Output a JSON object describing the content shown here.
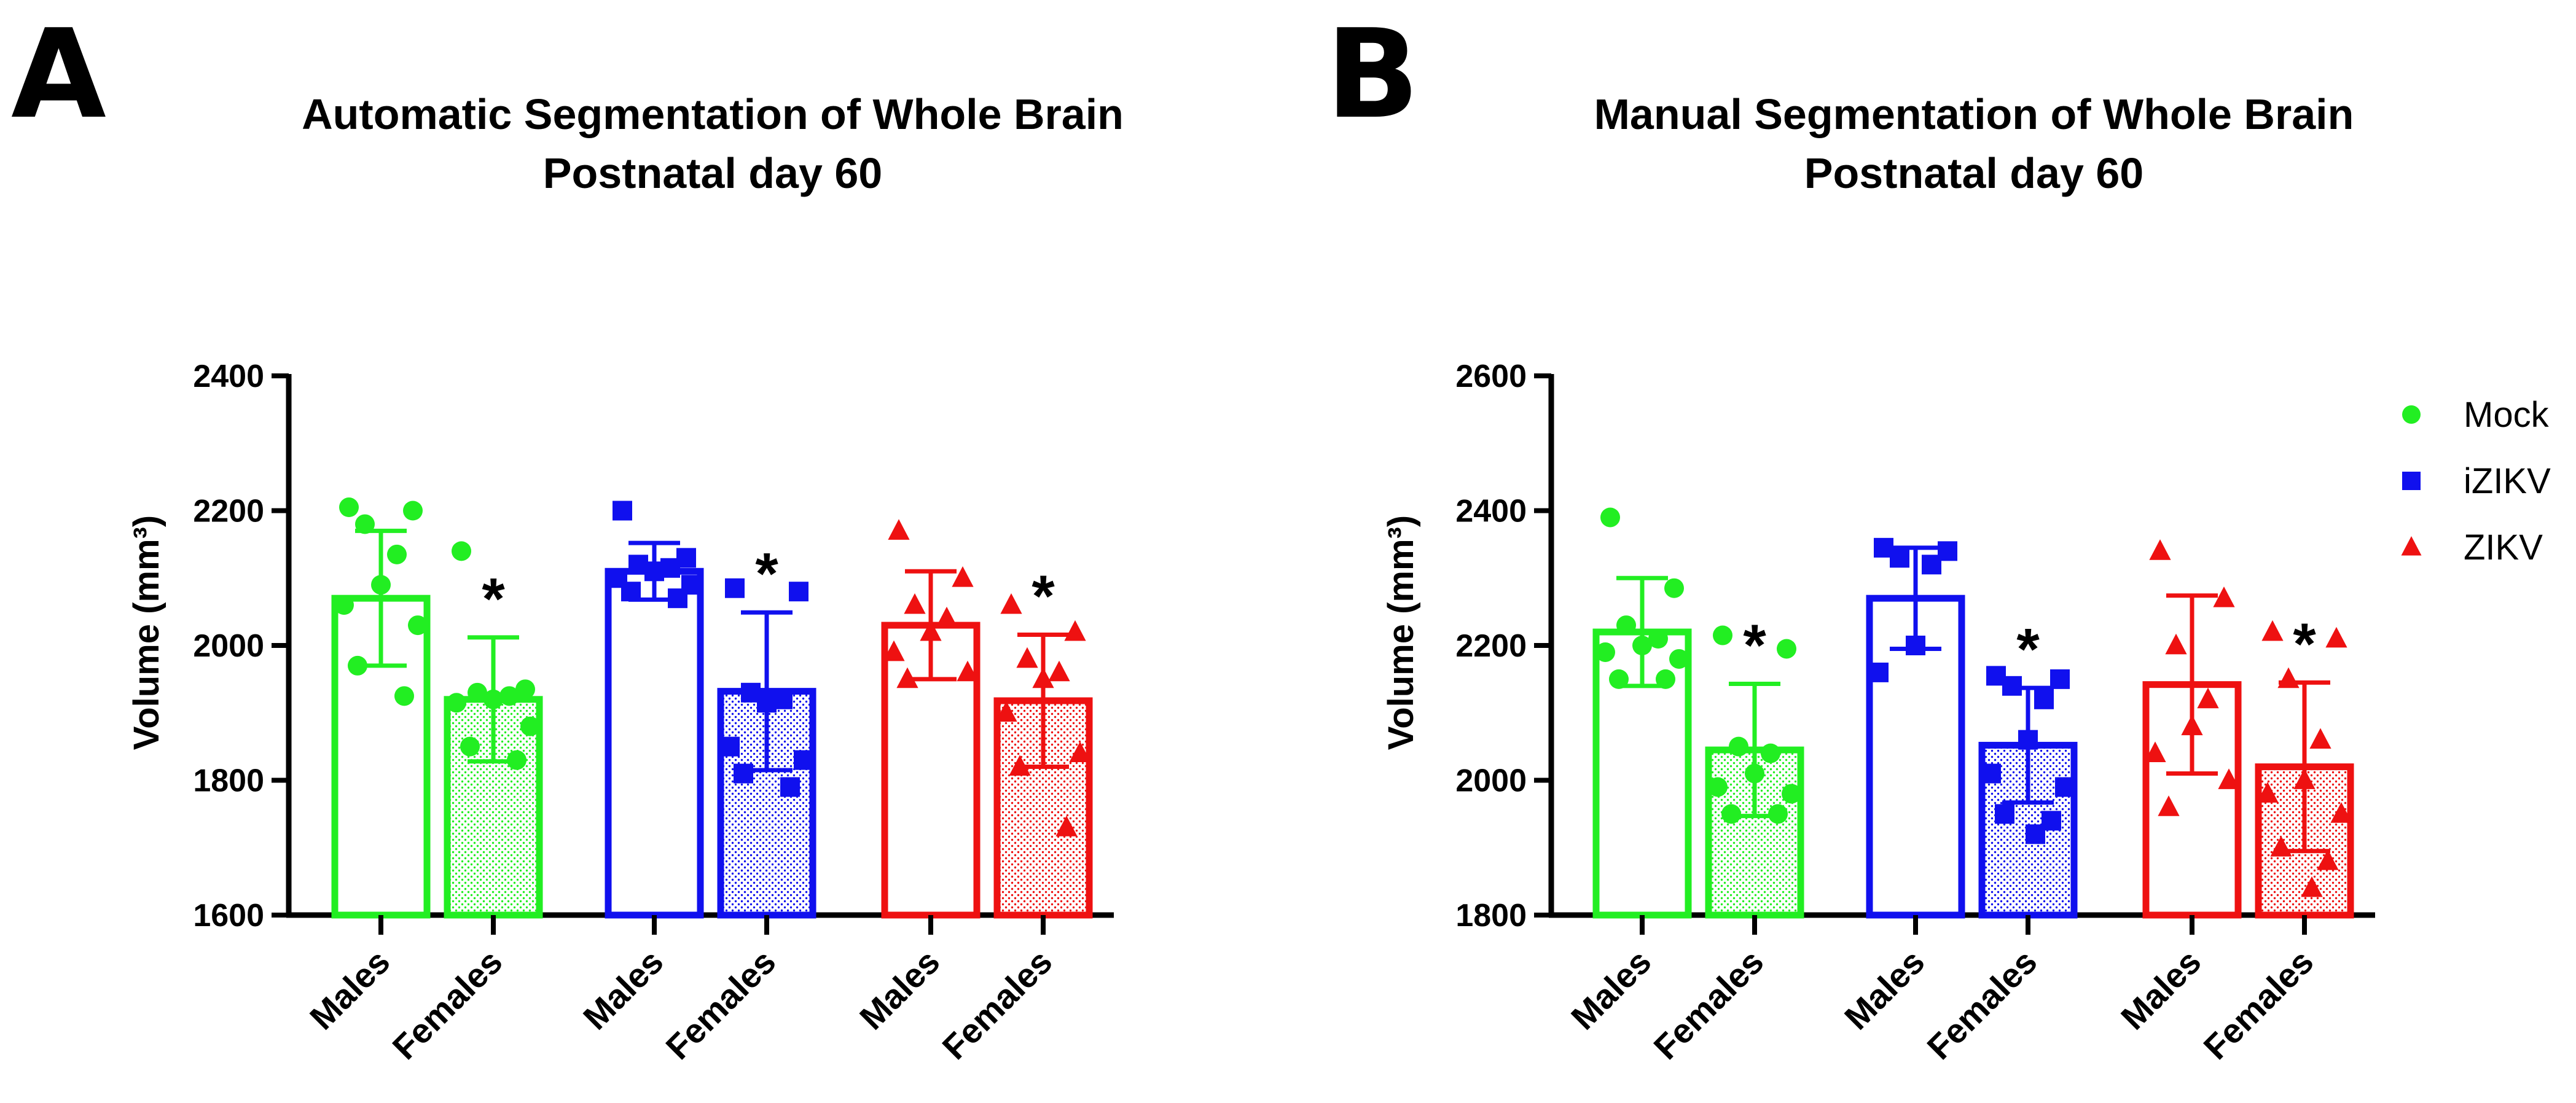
{
  "panels": [
    {
      "letter": "A"
    },
    {
      "letter": "B"
    }
  ],
  "colors": {
    "Mock": "#22ee22",
    "iZIKV": "#1010ee",
    "ZIKV": "#ee1111"
  },
  "chart_data": [
    {
      "type": "bar",
      "title": "Automatic Segmentation of Whole Brain",
      "subtitle": "Postnatal day 60",
      "ylabel": "Volume (mm³)",
      "xlabel": "",
      "ylim": [
        1600,
        2400
      ],
      "yticks": [
        1600,
        1800,
        2000,
        2200,
        2400
      ],
      "bars": [
        {
          "group": "Mock",
          "sex": "Males",
          "label": "Males",
          "mean": 2070,
          "sd": 100,
          "sig": "",
          "points": [
            2205,
            2200,
            2180,
            2135,
            2090,
            2060,
            2030,
            1970,
            1925
          ]
        },
        {
          "group": "Mock",
          "sex": "Females",
          "label": "Females",
          "mean": 1920,
          "sd": 92,
          "sig": "*",
          "points": [
            2140,
            1935,
            1930,
            1925,
            1920,
            1915,
            1880,
            1850,
            1830
          ]
        },
        {
          "group": "iZIKV",
          "sex": "Males",
          "label": "Males",
          "mean": 2110,
          "sd": 42,
          "sig": "",
          "points": [
            2200,
            2130,
            2120,
            2115,
            2110,
            2100,
            2090,
            2080,
            2070
          ]
        },
        {
          "group": "iZIKV",
          "sex": "Females",
          "label": "Females",
          "mean": 1932,
          "sd": 117,
          "sig": "*",
          "points": [
            2085,
            2080,
            1930,
            1920,
            1915,
            1850,
            1830,
            1810,
            1790
          ]
        },
        {
          "group": "ZIKV",
          "sex": "Males",
          "label": "Males",
          "mean": 2030,
          "sd": 80,
          "sig": "",
          "points": [
            2170,
            2100,
            2060,
            2040,
            2020,
            1990,
            1960,
            1950
          ]
        },
        {
          "group": "ZIKV",
          "sex": "Females",
          "label": "Females",
          "mean": 1918,
          "sd": 98,
          "sig": "*",
          "points": [
            2060,
            2020,
            1980,
            1960,
            1950,
            1900,
            1840,
            1820,
            1730
          ]
        }
      ]
    },
    {
      "type": "bar",
      "title": "Manual Segmentation of Whole Brain",
      "subtitle": "Postnatal day 60",
      "ylabel": "Volume (mm³)",
      "xlabel": "",
      "ylim": [
        1800,
        2600
      ],
      "yticks": [
        1800,
        2000,
        2200,
        2400,
        2600
      ],
      "legend": {
        "position": "top-right",
        "entries": [
          {
            "name": "Mock",
            "marker": "circle"
          },
          {
            "name": "iZIKV",
            "marker": "square"
          },
          {
            "name": "ZIKV",
            "marker": "triangle"
          }
        ]
      },
      "bars": [
        {
          "group": "Mock",
          "sex": "Males",
          "label": "Males",
          "mean": 2220,
          "sd": 80,
          "sig": "",
          "points": [
            2390,
            2285,
            2230,
            2210,
            2200,
            2190,
            2180,
            2150,
            2150
          ]
        },
        {
          "group": "Mock",
          "sex": "Females",
          "label": "Females",
          "mean": 2045,
          "sd": 98,
          "sig": "*",
          "points": [
            2215,
            2195,
            2050,
            2040,
            2010,
            1990,
            1980,
            1950,
            1950
          ]
        },
        {
          "group": "iZIKV",
          "sex": "Males",
          "label": "Males",
          "mean": 2270,
          "sd": 75,
          "sig": "",
          "points": [
            2345,
            2340,
            2330,
            2320,
            2200,
            2160
          ]
        },
        {
          "group": "iZIKV",
          "sex": "Females",
          "label": "Females",
          "mean": 2052,
          "sd": 85,
          "sig": "*",
          "points": [
            2155,
            2150,
            2140,
            2120,
            2060,
            2010,
            1990,
            1950,
            1940,
            1920
          ]
        },
        {
          "group": "ZIKV",
          "sex": "Males",
          "label": "Males",
          "mean": 2142,
          "sd": 132,
          "sig": "",
          "points": [
            2340,
            2270,
            2200,
            2120,
            2080,
            2040,
            2000,
            1960
          ]
        },
        {
          "group": "ZIKV",
          "sex": "Females",
          "label": "Females",
          "mean": 2020,
          "sd": 125,
          "sig": "*",
          "points": [
            2220,
            2210,
            2150,
            2060,
            2000,
            1980,
            1950,
            1900,
            1880,
            1840
          ]
        }
      ]
    }
  ]
}
